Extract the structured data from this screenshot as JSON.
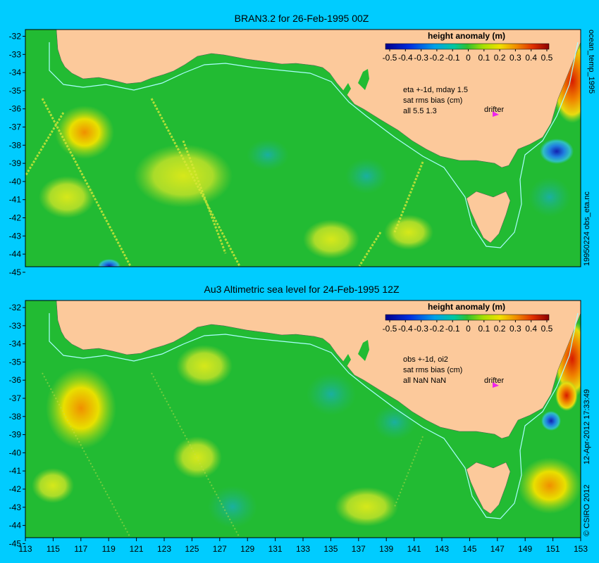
{
  "panels": [
    {
      "title": "BRAN3.2 for 26-Feb-1995 00Z",
      "colorbar_title": "height anomaly (m)",
      "notes": [
        "eta +-1d, mday 1.5",
        "sat rms bias (cm)",
        "all 5.5 1.3"
      ],
      "drifter_label": "drifter",
      "side_label": "19950224 obs_eta.nc"
    },
    {
      "title": "Au3 Altimetric sea level  for 24-Feb-1995 12Z",
      "colorbar_title": "height anomaly (m)",
      "notes": [
        "obs +-1d, oi2",
        "sat rms bias (cm)",
        "all NaN NaN"
      ],
      "drifter_label": "drifter",
      "side_label": "12-Apr-2012 17:33:49"
    }
  ],
  "top_right_label": "ocean_temp_1995",
  "copyright": "© CSIRO 2012",
  "lat_ticks": [
    "-32",
    "-33",
    "-34",
    "-35",
    "-36",
    "-37",
    "-38",
    "-39",
    "-40",
    "-41",
    "-42",
    "-43",
    "-44",
    "-45"
  ],
  "lon_ticks": [
    "113",
    "115",
    "117",
    "119",
    "121",
    "123",
    "125",
    "127",
    "129",
    "131",
    "133",
    "135",
    "137",
    "139",
    "141",
    "143",
    "145",
    "147",
    "149",
    "151",
    "153"
  ],
  "colorbar_ticks": [
    "-0.5",
    "-0.4",
    "-0.3",
    "-0.2",
    "-0.1",
    "0",
    "0.1",
    "0.2",
    "0.3",
    "0.4",
    "0.5"
  ],
  "colors": {
    "background": "#00ccff",
    "land": "#fcc99b",
    "ocean_base": "#22bb33",
    "shelf": "#38c898",
    "contour_line": "#aaffff",
    "drifter": "#ee22ee"
  }
}
